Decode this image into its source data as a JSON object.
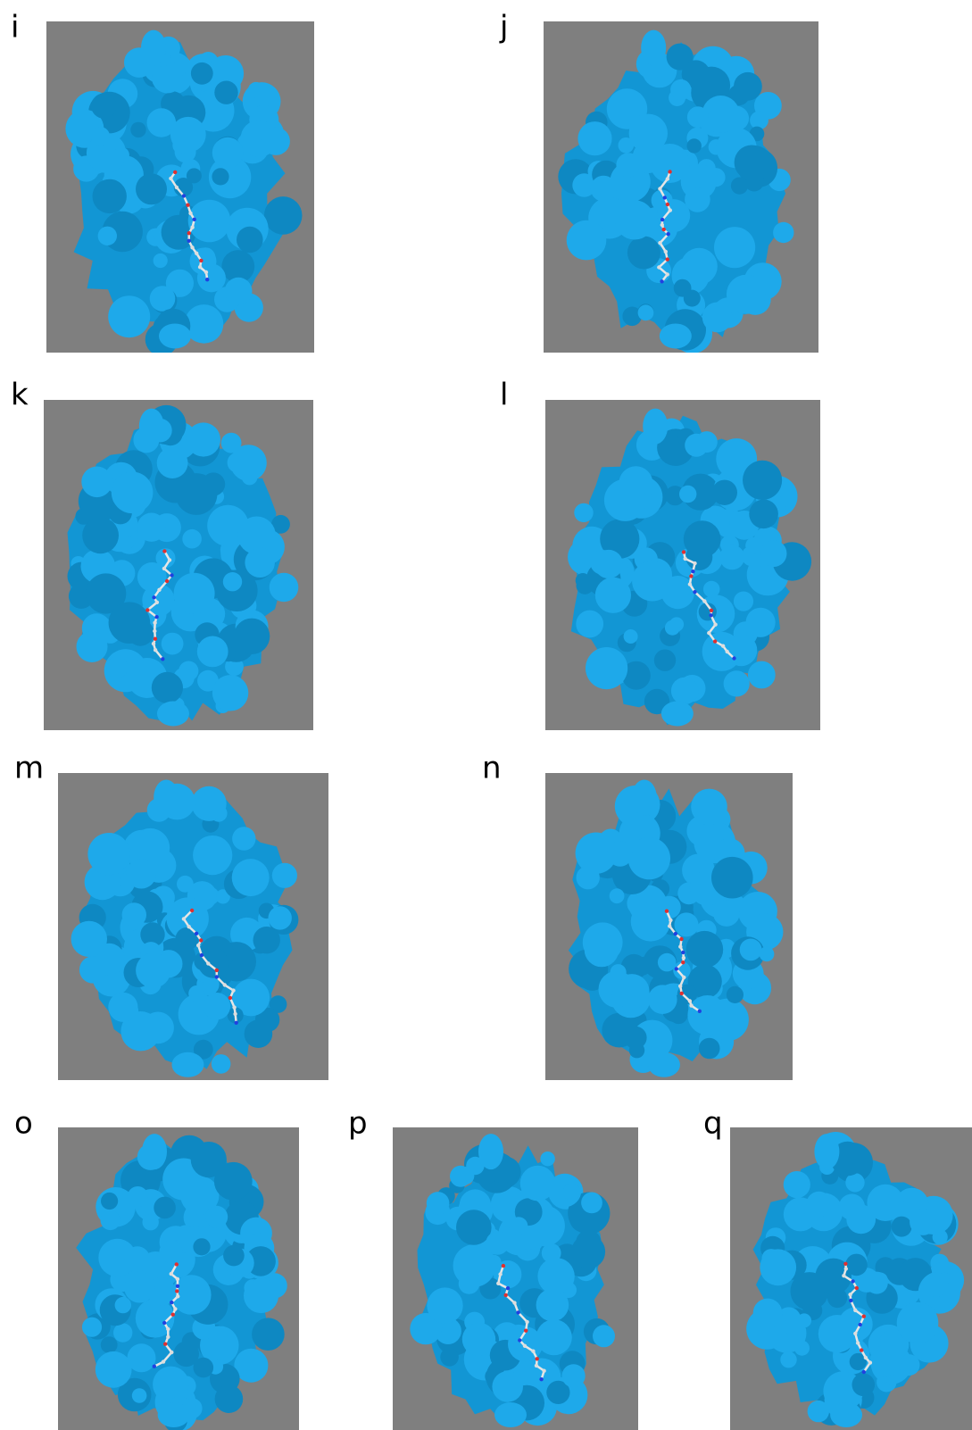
{
  "panels": [
    {
      "label": "i"
    },
    {
      "label": "j"
    },
    {
      "label": "k"
    },
    {
      "label": "l"
    },
    {
      "label": "m"
    },
    {
      "label": "n"
    },
    {
      "label": "o"
    },
    {
      "label": "p"
    },
    {
      "label": "q"
    }
  ]
}
